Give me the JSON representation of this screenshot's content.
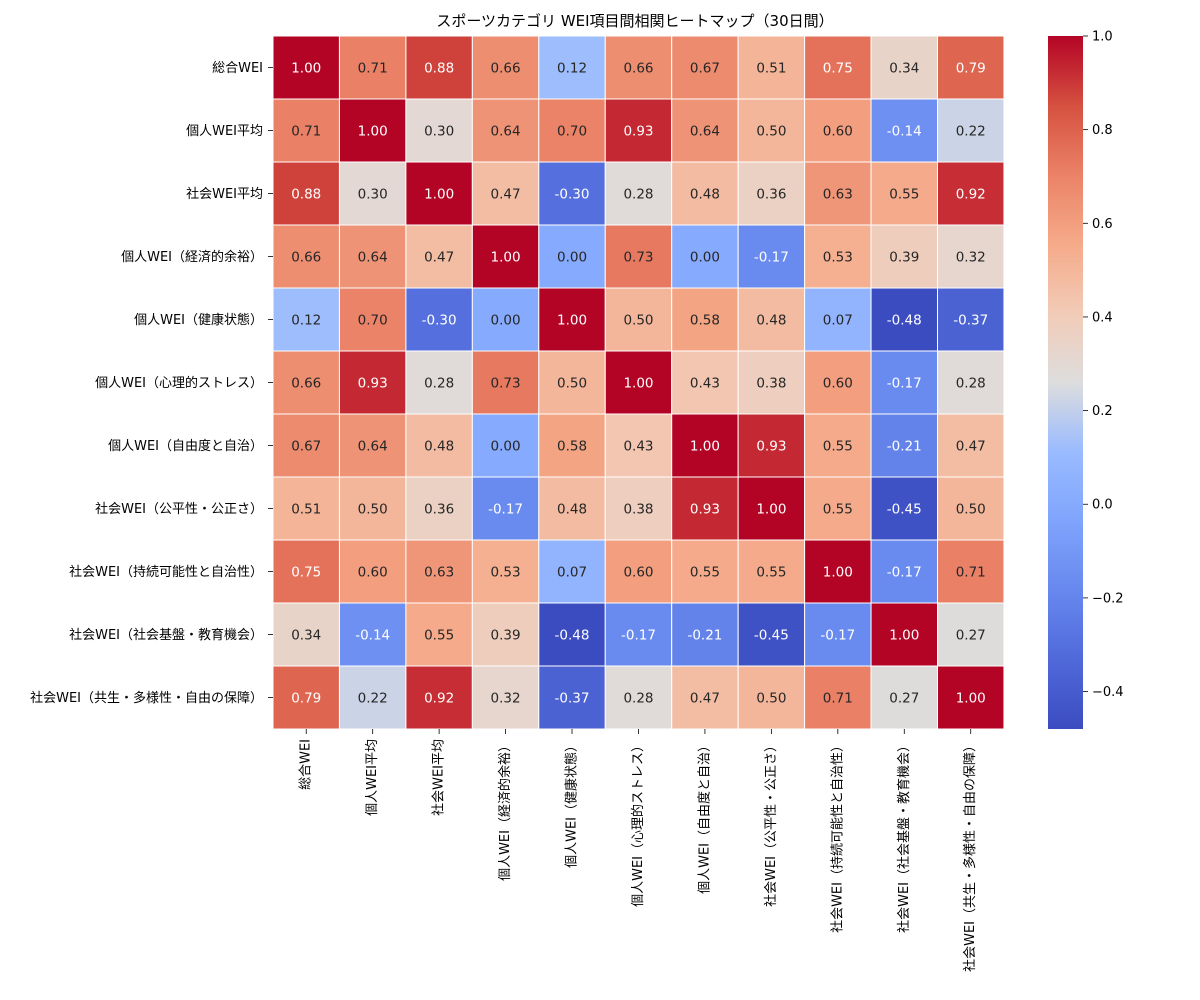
{
  "chart_data": {
    "type": "heatmap",
    "title": "スポーツカテゴリ WEI項目間相関ヒートマップ（30日間）",
    "colormap": "coolwarm",
    "color_range": [
      -0.48,
      1.0
    ],
    "colorbar_ticks": [
      "1.0",
      "0.8",
      "0.6",
      "0.4",
      "0.2",
      "0.0",
      "−0.2",
      "−0.4"
    ],
    "labels": [
      "総合WEI",
      "個人WEI平均",
      "社会WEI平均",
      "個人WEI（経済的余裕）",
      "個人WEI（健康状態）",
      "個人WEI（心理的ストレス）",
      "個人WEI（自由度と自治）",
      "社会WEI（公平性・公正さ）",
      "社会WEI（持続可能性と自治性）",
      "社会WEI（社会基盤・教育機会）",
      "社会WEI（共生・多様性・自由の保障）"
    ],
    "matrix": [
      [
        1.0,
        0.71,
        0.88,
        0.66,
        0.12,
        0.66,
        0.67,
        0.51,
        0.75,
        0.34,
        0.79
      ],
      [
        0.71,
        1.0,
        0.3,
        0.64,
        0.7,
        0.93,
        0.64,
        0.5,
        0.6,
        -0.14,
        0.22
      ],
      [
        0.88,
        0.3,
        1.0,
        0.47,
        -0.3,
        0.28,
        0.48,
        0.36,
        0.63,
        0.55,
        0.92
      ],
      [
        0.66,
        0.64,
        0.47,
        1.0,
        0.0,
        0.73,
        0.0,
        -0.17,
        0.53,
        0.39,
        0.32
      ],
      [
        0.12,
        0.7,
        -0.3,
        0.0,
        1.0,
        0.5,
        0.58,
        0.48,
        0.07,
        -0.48,
        -0.37
      ],
      [
        0.66,
        0.93,
        0.28,
        0.73,
        0.5,
        1.0,
        0.43,
        0.38,
        0.6,
        -0.17,
        0.28
      ],
      [
        0.67,
        0.64,
        0.48,
        0.0,
        0.58,
        0.43,
        1.0,
        0.93,
        0.55,
        -0.21,
        0.47
      ],
      [
        0.51,
        0.5,
        0.36,
        -0.17,
        0.48,
        0.38,
        0.93,
        1.0,
        0.55,
        -0.45,
        0.5
      ],
      [
        0.75,
        0.6,
        0.63,
        0.53,
        0.07,
        0.6,
        0.55,
        0.55,
        1.0,
        -0.17,
        0.71
      ],
      [
        0.34,
        -0.14,
        0.55,
        0.39,
        -0.48,
        -0.17,
        -0.21,
        -0.45,
        -0.17,
        1.0,
        0.27
      ],
      [
        0.79,
        0.22,
        0.92,
        0.32,
        -0.37,
        0.28,
        0.47,
        0.5,
        0.71,
        0.27,
        1.0
      ]
    ],
    "annotations_visible": true,
    "annotation_format": "0.00"
  }
}
